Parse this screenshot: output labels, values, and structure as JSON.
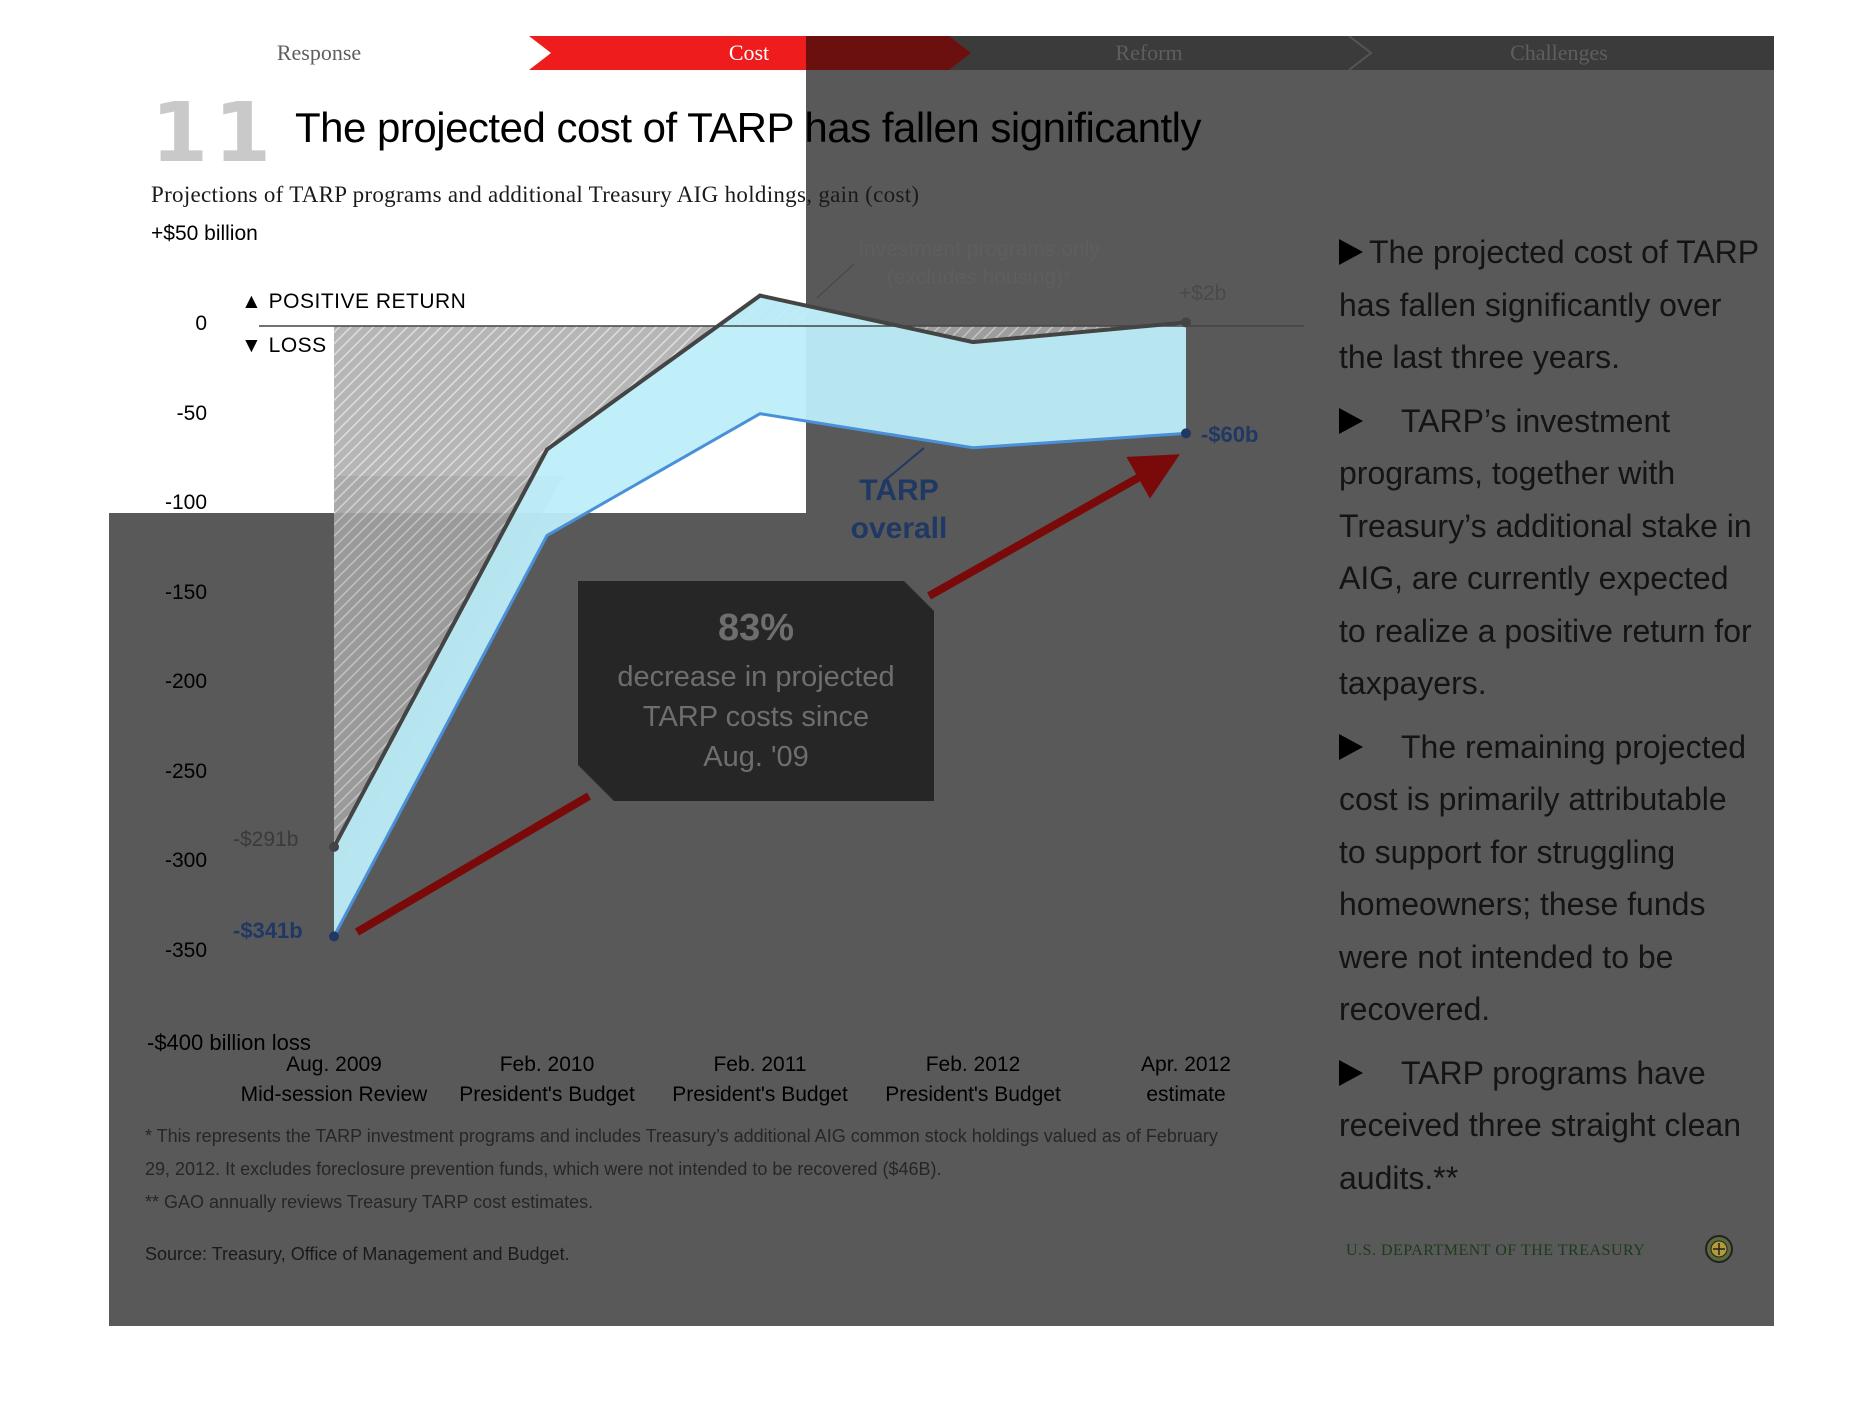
{
  "nav": {
    "items": [
      {
        "label": "Response",
        "active": false
      },
      {
        "label": "Cost",
        "active": true
      },
      {
        "label": "Reform",
        "active": false
      },
      {
        "label": "Challenges",
        "active": false
      }
    ]
  },
  "slide": {
    "number": "11",
    "title": "The projected cost of TARP has fallen significantly",
    "subtitle": "Projections of TARP programs and additional Treasury AIG holdings, gain (cost)"
  },
  "chart_data": {
    "type": "area",
    "y_top_label": "+$50 billion",
    "y_bottom_label": "-$400 billion loss",
    "yticks": [
      "0",
      "-50",
      "-100",
      "-150",
      "-200",
      "-250",
      "-300",
      "-350"
    ],
    "ylim": [
      -400,
      50
    ],
    "legend": {
      "positive": "POSITIVE RETURN",
      "negative": "LOSS"
    },
    "categories": [
      [
        "Aug. 2009",
        "Mid-session Review"
      ],
      [
        "Feb. 2010",
        "President's Budget"
      ],
      [
        "Feb. 2011",
        "President's Budget"
      ],
      [
        "Feb. 2012",
        "President's Budget"
      ],
      [
        "Apr. 2012",
        "estimate"
      ]
    ],
    "series": [
      {
        "name": "Investment programs only\n(excludes housing)*",
        "values": [
          -291,
          -69,
          17,
          -9,
          2
        ],
        "color": "#444444"
      },
      {
        "name": "TARP overall",
        "values": [
          -341,
          -117,
          -49,
          -68,
          -60
        ],
        "color": "#1f3864"
      }
    ],
    "data_labels": {
      "invest_start": "-$291b",
      "invest_end": "+$2b",
      "overall_start": "-$341b",
      "overall_end": "-$60b"
    },
    "overall_label": [
      "TARP",
      "overall"
    ],
    "callout": {
      "big": "83%",
      "lines": [
        "decrease in projected",
        "TARP costs since",
        "Aug. '09"
      ]
    }
  },
  "footnotes": [
    "* This represents the TARP investment programs and includes Treasury’s additional AIG common stock holdings valued as of February",
    "29, 2012. It excludes foreclosure prevention funds, which were not intended to be recovered ($46B).",
    "** GAO annually reviews Treasury TARP cost estimates."
  ],
  "source": "Source: Treasury, Office of Management and Budget.",
  "bullets": [
    "The projected cost of TARP has fallen significantly over the last three years.",
    "TARP’s investment programs, together with Treasury’s additional stake in AIG,  are currently expected to realize a positive return for taxpayers.",
    "The remaining projected cost is primarily attributable to support for struggling homeowners; these funds were not intended to be recovered.",
    "TARP programs have received three straight clean audits.**"
  ],
  "footer": {
    "org": "U.S. DEPARTMENT OF THE TREASURY"
  },
  "colors": {
    "accent_red": "#ee1c1c",
    "arrow_red": "#7a0a0a",
    "overall_blue": "#1f3864",
    "light_cyan": "#bdeefa",
    "slide_gray": "#595959"
  }
}
